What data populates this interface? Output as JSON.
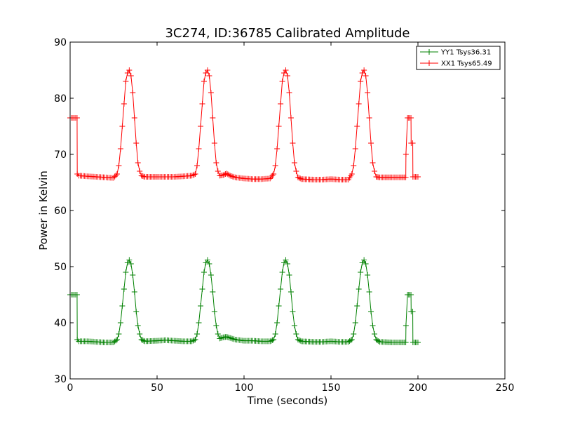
{
  "chart_data": {
    "type": "line",
    "title": "3C274, ID:36785 Calibrated Amplitude",
    "xlabel": "Time (seconds)",
    "ylabel": "Power in Kelvin",
    "xlim": [
      0,
      250
    ],
    "ylim": [
      30,
      90
    ],
    "xticks": [
      "0",
      "50",
      "100",
      "150",
      "200",
      "250"
    ],
    "yticks": [
      "30",
      "40",
      "50",
      "60",
      "70",
      "80",
      "90"
    ],
    "grid": false,
    "legend": "top-right",
    "marker": "+",
    "series": [
      {
        "name": "YY1 Tsys36.31",
        "color": "#008000",
        "x": [
          0,
          4,
          4.1,
          5,
          10,
          15,
          20,
          25,
          27,
          28,
          29,
          30,
          31,
          32,
          33,
          34,
          35,
          36,
          37,
          38,
          39,
          40,
          41,
          43,
          50,
          55,
          60,
          65,
          70,
          72,
          73,
          74,
          75,
          76,
          77,
          78,
          79,
          80,
          81,
          82,
          83,
          84,
          85,
          86,
          88,
          90,
          92,
          95,
          100,
          105,
          110,
          115,
          117,
          118,
          119,
          120,
          121,
          122,
          123,
          124,
          125,
          126,
          127,
          128,
          129,
          130,
          131,
          133,
          140,
          145,
          150,
          155,
          160,
          162,
          163,
          164,
          165,
          166,
          167,
          168,
          169,
          170,
          171,
          172,
          173,
          174,
          175,
          176,
          178,
          185,
          190,
          193,
          193.1,
          194,
          196,
          196.1,
          197,
          197.1,
          200
        ],
        "y": [
          45,
          45,
          37,
          36.7,
          36.7,
          36.6,
          36.5,
          36.5,
          37,
          38,
          40,
          43,
          46,
          49,
          50.7,
          51.2,
          50.5,
          48.5,
          45.5,
          42,
          39.5,
          38,
          37,
          36.7,
          36.8,
          36.9,
          36.8,
          36.7,
          36.7,
          37,
          38,
          40,
          43,
          46,
          49,
          50.7,
          51.2,
          50.5,
          48.5,
          45.5,
          42,
          39.5,
          38,
          37.2,
          37.4,
          37.5,
          37.3,
          37,
          36.8,
          36.8,
          36.7,
          36.7,
          37,
          38,
          40,
          43,
          46,
          49,
          50.7,
          51.2,
          50.5,
          48.5,
          45.5,
          42,
          39.5,
          38,
          37,
          36.7,
          36.6,
          36.6,
          36.7,
          36.6,
          36.6,
          37,
          38,
          40,
          43,
          46,
          49,
          50.7,
          51.2,
          50.5,
          48.5,
          45.5,
          42,
          39.5,
          38,
          37,
          36.6,
          36.5,
          36.5,
          36.5,
          39.5,
          45,
          45,
          42,
          42,
          36.5,
          36.5
        ]
      },
      {
        "name": "XX1 Tsys65.49",
        "color": "#ff0000",
        "x": [
          0,
          4,
          4.1,
          5,
          10,
          15,
          20,
          25,
          27,
          28,
          29,
          30,
          31,
          32,
          33,
          34,
          35,
          36,
          37,
          38,
          39,
          40,
          41,
          43,
          50,
          55,
          60,
          65,
          70,
          72,
          73,
          74,
          75,
          76,
          77,
          78,
          79,
          80,
          81,
          82,
          83,
          84,
          85,
          86,
          88,
          90,
          92,
          95,
          100,
          105,
          110,
          115,
          117,
          118,
          119,
          120,
          121,
          122,
          123,
          124,
          125,
          126,
          127,
          128,
          129,
          130,
          131,
          133,
          140,
          145,
          150,
          155,
          160,
          162,
          163,
          164,
          165,
          166,
          167,
          168,
          169,
          170,
          171,
          172,
          173,
          174,
          175,
          176,
          178,
          185,
          190,
          193,
          193.1,
          194,
          196,
          196.1,
          197,
          197.1,
          200
        ],
        "y": [
          76.5,
          76.5,
          66.5,
          66.2,
          66.1,
          66.0,
          65.9,
          65.8,
          66.5,
          68,
          71,
          75,
          79,
          83,
          84.5,
          85,
          84,
          81,
          76.5,
          72,
          68.5,
          67,
          66.2,
          66.0,
          66.0,
          66.0,
          66.0,
          66.1,
          66.2,
          66.5,
          68,
          71,
          75,
          79,
          83,
          84.5,
          85,
          84,
          81,
          76.5,
          72,
          68.5,
          67,
          66.2,
          66.3,
          66.6,
          66.2,
          65.9,
          65.7,
          65.6,
          65.6,
          65.7,
          66.5,
          68,
          71,
          75,
          79,
          83,
          84.5,
          85,
          84,
          81,
          76.5,
          72,
          68.5,
          67,
          65.9,
          65.6,
          65.5,
          65.5,
          65.6,
          65.5,
          65.5,
          66.5,
          68,
          71,
          75,
          79,
          83,
          84.5,
          85,
          84,
          81,
          76.5,
          72,
          68.5,
          67,
          66.0,
          65.9,
          65.9,
          65.9,
          65.9,
          70,
          76.5,
          76.5,
          72,
          72,
          66.0,
          66.0
        ]
      }
    ]
  }
}
